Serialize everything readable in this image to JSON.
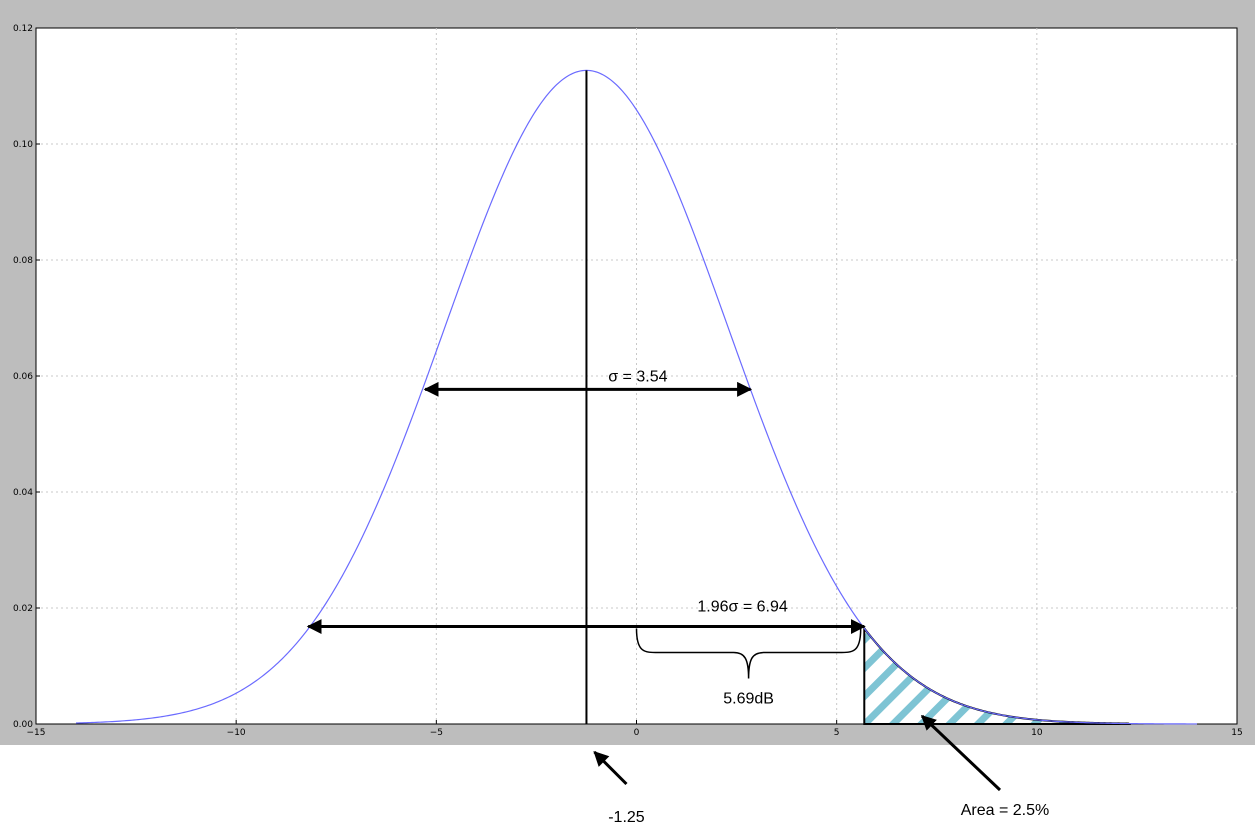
{
  "chart_data": {
    "type": "line",
    "title": "",
    "xlabel": "",
    "ylabel": "",
    "xlim": [
      -15,
      15
    ],
    "ylim": [
      0,
      0.12
    ],
    "grid": true,
    "xticks": [
      -15,
      -10,
      -5,
      0,
      5,
      10,
      15
    ],
    "xtick_labels": [
      "−15",
      "−10",
      "−5",
      "0",
      "5",
      "10",
      "15"
    ],
    "yticks": [
      0.0,
      0.02,
      0.04,
      0.06,
      0.08,
      0.1,
      0.12
    ],
    "ytick_labels": [
      "0.00",
      "0.02",
      "0.04",
      "0.06",
      "0.08",
      "0.10",
      "0.12"
    ],
    "series": [
      {
        "kind": "normal_pdf",
        "mean": -1.25,
        "sigma": 3.54,
        "x_range": [
          -14,
          14
        ],
        "color": "#6b6bff"
      }
    ],
    "shaded_region": {
      "x_from": 5.69,
      "x_to": 12.3,
      "hatch_color": "#7ec4d4"
    },
    "annotations": {
      "mean_label": "-1.25",
      "sigma_label": "σ = 3.54",
      "ci_label": "1.96σ = 6.94",
      "offset_label": "5.69dB",
      "area_label": "Area = 2.5%"
    },
    "markers": {
      "mean_x": -1.25,
      "sigma_arrow": {
        "x1": -5.28,
        "x2": 2.85,
        "y": 0.0577
      },
      "ci_arrow": {
        "x1": -8.2,
        "x2": 5.69,
        "y": 0.0168
      },
      "offset_brace": {
        "x1": 0,
        "x2": 5.6
      }
    }
  },
  "colors": {
    "frame": "#bdbdbd",
    "grid": "#c8c8c8",
    "curve": "#6b6bff",
    "hatch": "#7ec4d4",
    "annotation": "#000000"
  }
}
